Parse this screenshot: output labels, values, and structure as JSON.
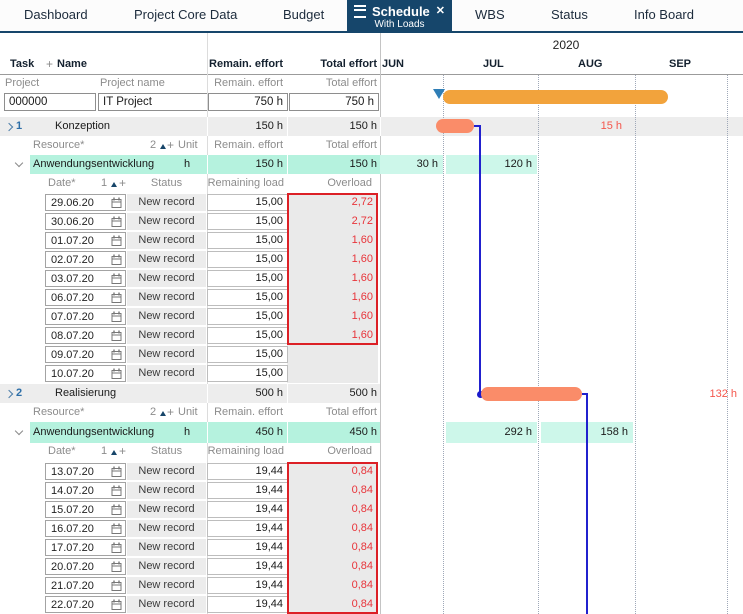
{
  "tabs": {
    "items": [
      {
        "label": "Dashboard"
      },
      {
        "label": "Project Core Data"
      },
      {
        "label": "Budget"
      },
      {
        "label": "WBS"
      },
      {
        "label": "Status"
      },
      {
        "label": "Info Board"
      }
    ],
    "active": {
      "label": "Schedule",
      "subtitle": "With Loads",
      "close": "✕"
    }
  },
  "header": {
    "task": "Task",
    "plus": "+",
    "name": "Name",
    "remain": "Remain. effort",
    "total": "Total effort"
  },
  "subheader": {
    "project": "Project",
    "project_name": "Project name",
    "remain": "Remain. effort",
    "total": "Total effort"
  },
  "project_row": {
    "id": "000000",
    "name": "IT Project",
    "remain": "750 h",
    "total": "750 h"
  },
  "gantt": {
    "year": "2020",
    "months": [
      "JUN",
      "JUL",
      "AUG",
      "SEP"
    ],
    "task1_overload_label": "15 h",
    "task2_overload_label": "132 h"
  },
  "resource_header": {
    "resource": "Resource*",
    "sort": "2",
    "plus": "+",
    "unit": "Unit",
    "remain": "Remain. effort",
    "total": "Total effort"
  },
  "date_header": {
    "date": "Date*",
    "sort": "1",
    "plus": "+",
    "status": "Status",
    "remaining": "Remaining load",
    "overload": "Overload"
  },
  "colors": {
    "navy": "#16466b",
    "project_bar": "#f2a33c",
    "task_bar": "#fa8c69",
    "teal_row": "#b5f2de",
    "teal_gantt_cell": "#cdf7ea",
    "grey_row": "#ededed",
    "overload_red": "#e8343a",
    "red_border": "#dc2026",
    "link_blue": "#2121ce"
  },
  "tasks": [
    {
      "num": "1",
      "name": "Konzeption",
      "remain": "150 h",
      "total": "150 h",
      "resource": {
        "name": "Anwendungsentwicklung",
        "unit": "h",
        "remain": "150 h",
        "total": "150 h",
        "loads": [
          "30 h",
          "120 h"
        ]
      },
      "entries": [
        {
          "date": "29.06.20",
          "status": "New record",
          "remaining": "15,00",
          "overload": "2,72"
        },
        {
          "date": "30.06.20",
          "status": "New record",
          "remaining": "15,00",
          "overload": "2,72"
        },
        {
          "date": "01.07.20",
          "status": "New record",
          "remaining": "15,00",
          "overload": "1,60"
        },
        {
          "date": "02.07.20",
          "status": "New record",
          "remaining": "15,00",
          "overload": "1,60"
        },
        {
          "date": "03.07.20",
          "status": "New record",
          "remaining": "15,00",
          "overload": "1,60"
        },
        {
          "date": "06.07.20",
          "status": "New record",
          "remaining": "15,00",
          "overload": "1,60"
        },
        {
          "date": "07.07.20",
          "status": "New record",
          "remaining": "15,00",
          "overload": "1,60"
        },
        {
          "date": "08.07.20",
          "status": "New record",
          "remaining": "15,00",
          "overload": "1,60"
        },
        {
          "date": "09.07.20",
          "status": "New record",
          "remaining": "15,00",
          "overload": ""
        },
        {
          "date": "10.07.20",
          "status": "New record",
          "remaining": "15,00",
          "overload": ""
        }
      ]
    },
    {
      "num": "2",
      "name": "Realisierung",
      "remain": "500 h",
      "total": "500 h",
      "resource": {
        "name": "Anwendungsentwicklung",
        "unit": "h",
        "remain": "450 h",
        "total": "450 h",
        "loads": [
          "292 h",
          "158 h"
        ]
      },
      "entries": [
        {
          "date": "13.07.20",
          "status": "New record",
          "remaining": "19,44",
          "overload": "0,84"
        },
        {
          "date": "14.07.20",
          "status": "New record",
          "remaining": "19,44",
          "overload": "0,84"
        },
        {
          "date": "15.07.20",
          "status": "New record",
          "remaining": "19,44",
          "overload": "0,84"
        },
        {
          "date": "16.07.20",
          "status": "New record",
          "remaining": "19,44",
          "overload": "0,84"
        },
        {
          "date": "17.07.20",
          "status": "New record",
          "remaining": "19,44",
          "overload": "0,84"
        },
        {
          "date": "20.07.20",
          "status": "New record",
          "remaining": "19,44",
          "overload": "0,84"
        },
        {
          "date": "21.07.20",
          "status": "New record",
          "remaining": "19,44",
          "overload": "0,84"
        },
        {
          "date": "22.07.20",
          "status": "New record",
          "remaining": "19,44",
          "overload": "0,84"
        }
      ]
    }
  ]
}
